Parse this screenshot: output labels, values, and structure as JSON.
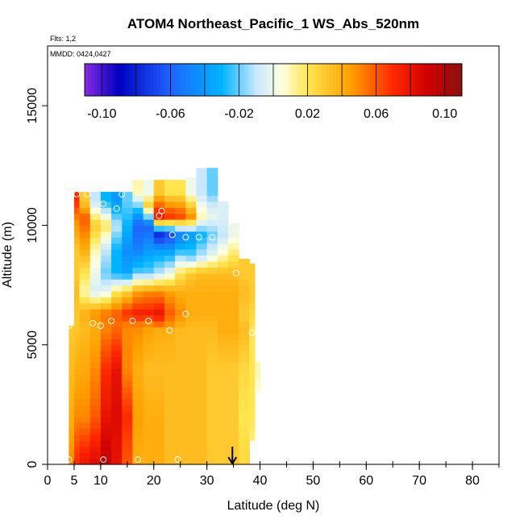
{
  "chart_data": {
    "type": "heatmap",
    "title": "ATOM4 Northeast_Pacific_1 WS_Abs_520nm",
    "flights_label": "Flts: 1,2",
    "dates_label": "MMDD: 0424,0427",
    "xlabel": "Latitude (deg N)",
    "ylabel": "Altitude (m)",
    "xlim": [
      0,
      85
    ],
    "ylim": [
      0,
      17500
    ],
    "x_ticks": [
      {
        "value": 0,
        "label": "0"
      },
      {
        "value": 5,
        "label": "5"
      },
      {
        "value": 10,
        "label": "10"
      },
      {
        "value": 20,
        "label": "20"
      },
      {
        "value": 30,
        "label": "30"
      },
      {
        "value": 40,
        "label": "40"
      },
      {
        "value": 50,
        "label": "50"
      },
      {
        "value": 60,
        "label": "60"
      },
      {
        "value": 70,
        "label": "70"
      },
      {
        "value": 80,
        "label": "80"
      }
    ],
    "x_minor_ticks": [
      5,
      10,
      15,
      20,
      25,
      30,
      35,
      40,
      45,
      50,
      55,
      60,
      65,
      70,
      75,
      80,
      85
    ],
    "y_ticks": [
      {
        "value": 0,
        "label": "0"
      },
      {
        "value": 5000,
        "label": "5000"
      },
      {
        "value": 10000,
        "label": "10000"
      },
      {
        "value": 15000,
        "label": "15000"
      }
    ],
    "colorbar": {
      "range": [
        -0.11,
        0.11
      ],
      "tick_values": [
        -0.1,
        -0.06,
        -0.02,
        0.02,
        0.06,
        0.1
      ],
      "tick_labels": [
        "-0.10",
        "-0.06",
        "-0.02",
        "0.02",
        "0.06",
        "0.10"
      ],
      "stops": [
        {
          "value": -0.11,
          "color": "#8a2be2"
        },
        {
          "value": -0.09,
          "color": "#0000c0"
        },
        {
          "value": -0.06,
          "color": "#1e64ff"
        },
        {
          "value": -0.03,
          "color": "#00b4ff"
        },
        {
          "value": -0.01,
          "color": "#c8e8ff"
        },
        {
          "value": 0.005,
          "color": "#ffffe0"
        },
        {
          "value": 0.02,
          "color": "#ffe650"
        },
        {
          "value": 0.045,
          "color": "#ffa000"
        },
        {
          "value": 0.07,
          "color": "#ff2800"
        },
        {
          "value": 0.09,
          "color": "#d00000"
        },
        {
          "value": 0.11,
          "color": "#8b1010"
        }
      ]
    },
    "marker": {
      "x": 34.8,
      "y": 0,
      "label": "arrow"
    },
    "columns": [
      {
        "x0": 4,
        "x1": 5,
        "top": 5800,
        "layers": [
          [
            0,
            0.05
          ],
          [
            2000,
            0.04
          ],
          [
            5800,
            0.03
          ]
        ]
      },
      {
        "x0": 5,
        "x1": 6,
        "top": 11400,
        "layers": [
          [
            0,
            0.07
          ],
          [
            2000,
            0.05
          ],
          [
            6000,
            0.03
          ],
          [
            7200,
            0.035
          ],
          [
            8000,
            0.03
          ],
          [
            9000,
            0.03
          ],
          [
            10300,
            0.05
          ],
          [
            11000,
            0.07
          ]
        ]
      },
      {
        "x0": 6,
        "x1": 8,
        "top": 11400,
        "layers": [
          [
            0,
            0.08
          ],
          [
            2000,
            0.05
          ],
          [
            5800,
            0.035
          ],
          [
            6300,
            0.04
          ],
          [
            7200,
            0.01
          ],
          [
            8000,
            0.02
          ],
          [
            9000,
            0.04
          ],
          [
            10300,
            0.06
          ],
          [
            11000,
            0.03
          ]
        ]
      },
      {
        "x0": 8,
        "x1": 10,
        "top": 11400,
        "layers": [
          [
            0,
            0.085
          ],
          [
            2000,
            0.06
          ],
          [
            5800,
            0.04
          ],
          [
            6300,
            0.05
          ],
          [
            7200,
            -0.005
          ],
          [
            8000,
            0.0
          ],
          [
            9000,
            0.01
          ],
          [
            10000,
            0.03
          ],
          [
            11000,
            -0.01
          ]
        ]
      },
      {
        "x0": 10,
        "x1": 12,
        "top": 11400,
        "layers": [
          [
            0,
            0.095
          ],
          [
            2000,
            0.08
          ],
          [
            4000,
            0.07
          ],
          [
            5800,
            0.05
          ],
          [
            6300,
            0.055
          ],
          [
            7200,
            0.0
          ],
          [
            8000,
            -0.02
          ],
          [
            9000,
            -0.01
          ],
          [
            10000,
            0.02
          ],
          [
            11000,
            -0.03
          ]
        ]
      },
      {
        "x0": 12,
        "x1": 14,
        "top": 11400,
        "layers": [
          [
            0,
            0.08
          ],
          [
            2000,
            0.085
          ],
          [
            4000,
            0.08
          ],
          [
            5800,
            0.055
          ],
          [
            6300,
            0.06
          ],
          [
            7200,
            0.02
          ],
          [
            8000,
            -0.03
          ],
          [
            9000,
            -0.03
          ],
          [
            10000,
            -0.01
          ],
          [
            11000,
            -0.04
          ]
        ]
      },
      {
        "x0": 14,
        "x1": 16,
        "top": 11400,
        "layers": [
          [
            0,
            0.06
          ],
          [
            2000,
            0.07
          ],
          [
            4000,
            0.05
          ],
          [
            5800,
            0.05
          ],
          [
            6300,
            0.07
          ],
          [
            7200,
            0.03
          ],
          [
            8000,
            -0.035
          ],
          [
            9000,
            -0.045
          ],
          [
            10000,
            -0.03
          ],
          [
            11000,
            -0.02
          ]
        ]
      },
      {
        "x0": 16,
        "x1": 18,
        "top": 11900,
        "layers": [
          [
            0,
            0.04
          ],
          [
            2000,
            0.045
          ],
          [
            4000,
            0.04
          ],
          [
            5800,
            0.05
          ],
          [
            6300,
            0.075
          ],
          [
            7200,
            0.045
          ],
          [
            8000,
            -0.02
          ],
          [
            9000,
            -0.05
          ],
          [
            10000,
            -0.06
          ],
          [
            10800,
            -0.02
          ],
          [
            11400,
            0.01
          ]
        ]
      },
      {
        "x0": 18,
        "x1": 20,
        "top": 11900,
        "layers": [
          [
            0,
            0.04
          ],
          [
            2000,
            0.04
          ],
          [
            4000,
            0.035
          ],
          [
            5800,
            0.045
          ],
          [
            6300,
            0.075
          ],
          [
            7200,
            0.05
          ],
          [
            8000,
            -0.02
          ],
          [
            9000,
            -0.04
          ],
          [
            10000,
            -0.06
          ],
          [
            10800,
            0.03
          ],
          [
            11400,
            0.0
          ]
        ]
      },
      {
        "x0": 20,
        "x1": 22,
        "top": 11900,
        "layers": [
          [
            0,
            0.04
          ],
          [
            2000,
            0.04
          ],
          [
            4000,
            0.035
          ],
          [
            5600,
            0.04
          ],
          [
            6300,
            0.08
          ],
          [
            7200,
            0.05
          ],
          [
            8000,
            -0.01
          ],
          [
            9000,
            -0.04
          ],
          [
            9600,
            -0.08
          ],
          [
            10400,
            0.08
          ],
          [
            11400,
            0.03
          ]
        ]
      },
      {
        "x0": 22,
        "x1": 24,
        "top": 11900,
        "layers": [
          [
            0,
            0.035
          ],
          [
            2000,
            0.035
          ],
          [
            4000,
            0.035
          ],
          [
            5600,
            0.04
          ],
          [
            6300,
            0.06
          ],
          [
            7200,
            0.045
          ],
          [
            8000,
            0.0
          ],
          [
            9000,
            -0.04
          ],
          [
            9600,
            -0.07
          ],
          [
            10400,
            0.07
          ],
          [
            11400,
            0.02
          ]
        ]
      },
      {
        "x0": 24,
        "x1": 26,
        "top": 11900,
        "layers": [
          [
            0,
            0.035
          ],
          [
            2000,
            0.035
          ],
          [
            4000,
            0.035
          ],
          [
            5600,
            0.035
          ],
          [
            6300,
            0.05
          ],
          [
            7200,
            0.04
          ],
          [
            8000,
            0.02
          ],
          [
            9000,
            -0.03
          ],
          [
            9600,
            -0.05
          ],
          [
            10400,
            0.065
          ],
          [
            11400,
            0.02
          ]
        ]
      },
      {
        "x0": 26,
        "x1": 28,
        "top": 12000,
        "layers": [
          [
            0,
            0.035
          ],
          [
            2000,
            0.035
          ],
          [
            4000,
            0.035
          ],
          [
            5600,
            0.035
          ],
          [
            6300,
            0.04
          ],
          [
            7200,
            0.04
          ],
          [
            8000,
            0.03
          ],
          [
            8700,
            -0.02
          ],
          [
            9600,
            -0.04
          ],
          [
            10400,
            0.05
          ],
          [
            11400,
            0.0
          ]
        ]
      },
      {
        "x0": 28,
        "x1": 30,
        "top": 12400,
        "layers": [
          [
            0,
            0.035
          ],
          [
            2000,
            0.035
          ],
          [
            4000,
            0.035
          ],
          [
            5600,
            0.035
          ],
          [
            6300,
            0.04
          ],
          [
            7200,
            0.04
          ],
          [
            8000,
            0.035
          ],
          [
            8700,
            -0.01
          ],
          [
            9600,
            -0.03
          ],
          [
            10400,
            0.01
          ],
          [
            11400,
            -0.01
          ]
        ]
      },
      {
        "x0": 30,
        "x1": 32,
        "top": 12400,
        "layers": [
          [
            0,
            0.03
          ],
          [
            2000,
            0.03
          ],
          [
            4000,
            0.03
          ],
          [
            5600,
            0.035
          ],
          [
            6300,
            0.04
          ],
          [
            7200,
            0.04
          ],
          [
            8000,
            0.035
          ],
          [
            8700,
            0.0
          ],
          [
            9600,
            -0.02
          ],
          [
            10400,
            0.0
          ],
          [
            11400,
            -0.02
          ]
        ]
      },
      {
        "x0": 32,
        "x1": 34,
        "top": 11000,
        "layers": [
          [
            0,
            0.03
          ],
          [
            2000,
            0.03
          ],
          [
            4000,
            0.03
          ],
          [
            5600,
            0.04
          ],
          [
            6300,
            0.04
          ],
          [
            7200,
            0.04
          ],
          [
            8000,
            0.035
          ],
          [
            8700,
            0.01
          ],
          [
            9600,
            -0.01
          ],
          [
            10400,
            -0.005
          ]
        ]
      },
      {
        "x0": 34,
        "x1": 36,
        "top": 10100,
        "layers": [
          [
            0,
            0.03
          ],
          [
            2000,
            0.03
          ],
          [
            4000,
            0.03
          ],
          [
            5600,
            0.04
          ],
          [
            6300,
            0.04
          ],
          [
            7200,
            0.04
          ],
          [
            8000,
            0.035
          ],
          [
            8700,
            0.02
          ],
          [
            9600,
            0.0
          ]
        ]
      },
      {
        "x0": 36,
        "x1": 38,
        "top": 8600,
        "layers": [
          [
            0,
            0.025
          ],
          [
            2000,
            0.02
          ],
          [
            4000,
            0.025
          ],
          [
            5600,
            0.035
          ],
          [
            6300,
            0.03
          ],
          [
            7200,
            0.035
          ],
          [
            8000,
            0.03
          ]
        ]
      },
      {
        "x0": 38,
        "x1": 39,
        "top": 8400,
        "layers": [
          [
            1000,
            0.015
          ],
          [
            2000,
            0.02
          ],
          [
            4000,
            0.02
          ],
          [
            5600,
            0.02
          ],
          [
            7000,
            0.03
          ]
        ]
      },
      {
        "x0": 39,
        "x1": 40,
        "top": 4300,
        "layers": [
          [
            3000,
            0.005
          ],
          [
            3800,
            0.01
          ]
        ]
      }
    ],
    "sample_points": [
      [
        4,
        200
      ],
      [
        10.5,
        200
      ],
      [
        17,
        200
      ],
      [
        24.5,
        200
      ],
      [
        4,
        5800
      ],
      [
        8.5,
        5900
      ],
      [
        10,
        5800
      ],
      [
        12,
        6000
      ],
      [
        16,
        6000
      ],
      [
        19,
        6000
      ],
      [
        23,
        5600
      ],
      [
        26,
        6300
      ],
      [
        38.5,
        5500
      ],
      [
        5.5,
        11300
      ],
      [
        7.5,
        11300
      ],
      [
        10.5,
        10900
      ],
      [
        13,
        10700
      ],
      [
        14,
        11300
      ],
      [
        21,
        10400
      ],
      [
        21.5,
        10600
      ],
      [
        23.5,
        9600
      ],
      [
        26,
        9500
      ],
      [
        28.5,
        9500
      ],
      [
        31,
        9500
      ],
      [
        33,
        9000
      ],
      [
        35.5,
        8000
      ]
    ]
  }
}
